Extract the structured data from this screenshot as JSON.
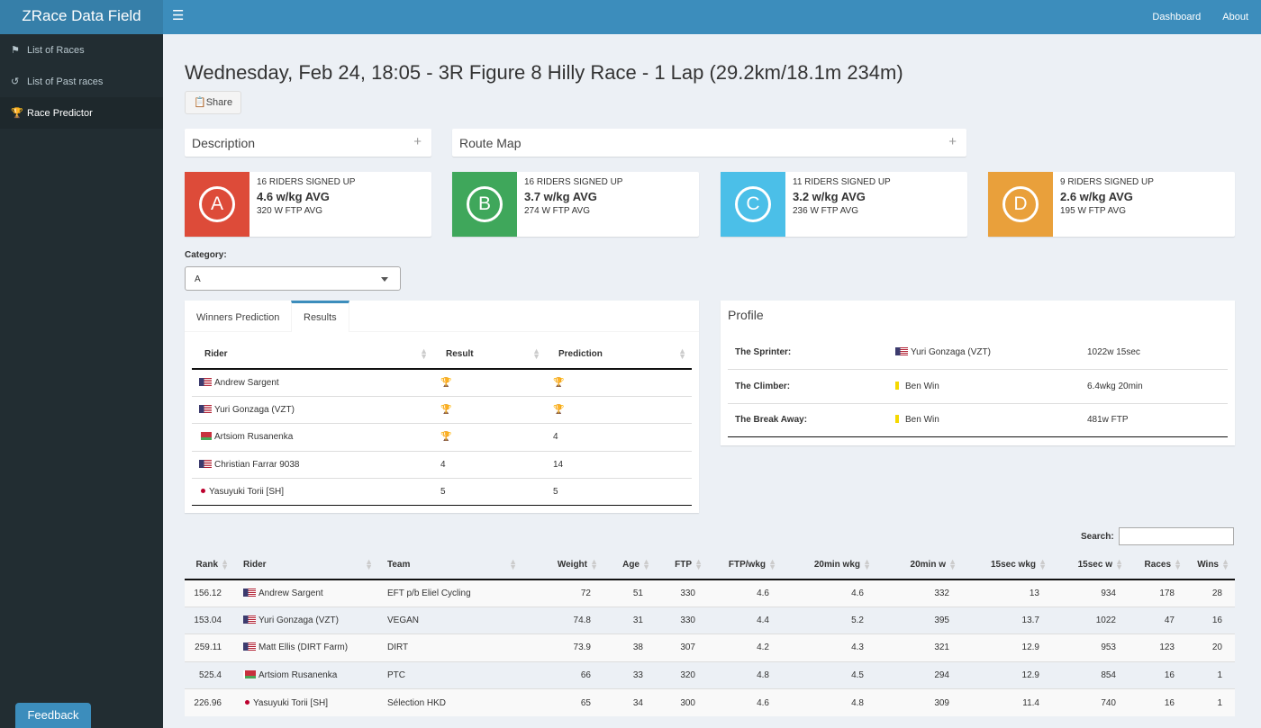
{
  "app": {
    "title": "ZRace Data Field"
  },
  "header": {
    "nav": [
      "Dashboard",
      "About"
    ]
  },
  "sidebar": {
    "items": [
      {
        "label": "List of Races",
        "icon": "flag-checkered-icon"
      },
      {
        "label": "List of Past races",
        "icon": "history-icon"
      },
      {
        "label": "Race Predictor",
        "icon": "trophy-icon",
        "active": true
      }
    ],
    "feedback_label": "Feedback"
  },
  "page": {
    "title": "Wednesday, Feb 24, 18:05 - 3R Figure 8 Hilly Race - 1 Lap (29.2km/18.1m 234m)",
    "share_label": "Share",
    "description_title": "Description",
    "route_map_title": "Route Map"
  },
  "categories": [
    {
      "letter": "A",
      "riders": "16 RIDERS SIGNED UP",
      "wkg": "4.6 w/kg AVG",
      "ftp": "320 W FTP AVG",
      "color": "#dd4b39"
    },
    {
      "letter": "B",
      "riders": "16 RIDERS SIGNED UP",
      "wkg": "3.7 w/kg AVG",
      "ftp": "274 W FTP AVG",
      "color": "#3fa75b"
    },
    {
      "letter": "C",
      "riders": "11 RIDERS SIGNED UP",
      "wkg": "3.2 w/kg AVG",
      "ftp": "236 W FTP AVG",
      "color": "#4bbfe8"
    },
    {
      "letter": "D",
      "riders": "9 RIDERS SIGNED UP",
      "wkg": "2.6 w/kg AVG",
      "ftp": "195 W FTP AVG",
      "color": "#e9a03b"
    }
  ],
  "category_select": {
    "label": "Category:",
    "value": "A"
  },
  "tabs": [
    "Winners Prediction",
    "Results"
  ],
  "results_table": {
    "headers": [
      "Rider",
      "Result",
      "Prediction"
    ],
    "rows": [
      {
        "flag": "us",
        "rider": "Andrew Sargent",
        "result": "",
        "result_trophy": "gold",
        "prediction": "",
        "prediction_trophy": "gold"
      },
      {
        "flag": "us",
        "rider": "Yuri Gonzaga (VZT)",
        "result": "",
        "result_trophy": "silver",
        "prediction": "",
        "prediction_trophy": "silver"
      },
      {
        "flag": "by",
        "rider": "Artsiom Rusanenka",
        "result": "",
        "result_trophy": "bronze",
        "prediction": "4",
        "prediction_trophy": ""
      },
      {
        "flag": "us",
        "rider": "Christian Farrar 9038",
        "result": "4",
        "result_trophy": "",
        "prediction": "14",
        "prediction_trophy": ""
      },
      {
        "flag": "jp",
        "rider": "Yasuyuki Torii [SH]",
        "result": "5",
        "result_trophy": "",
        "prediction": "5",
        "prediction_trophy": ""
      }
    ]
  },
  "profile": {
    "title": "Profile",
    "rows": [
      {
        "label": "The Sprinter:",
        "flag": "us",
        "name": "Yuri Gonzaga (VZT)",
        "value": "1022w 15sec"
      },
      {
        "label": "The Climber:",
        "flag": "yellow",
        "name": "Ben Win",
        "value": "6.4wkg 20min"
      },
      {
        "label": "The Break Away:",
        "flag": "yellow",
        "name": "Ben Win",
        "value": "481w FTP"
      }
    ]
  },
  "search": {
    "label": "Search:",
    "value": ""
  },
  "riders_table": {
    "headers": [
      "Rank",
      "Rider",
      "Team",
      "Weight",
      "Age",
      "FTP",
      "FTP/wkg",
      "20min wkg",
      "20min w",
      "15sec wkg",
      "15sec w",
      "Races",
      "Wins"
    ],
    "rows": [
      {
        "rank": "156.12",
        "flag": "us",
        "rider": "Andrew Sargent",
        "team": "EFT p/b Eliel Cycling",
        "weight": "72",
        "age": "51",
        "ftp": "330",
        "ftpwkg": "4.6",
        "w20wkg": "4.6",
        "w20": "332",
        "s15wkg": "13",
        "s15": "934",
        "races": "178",
        "wins": "28"
      },
      {
        "rank": "153.04",
        "flag": "us",
        "rider": "Yuri Gonzaga (VZT)",
        "team": "VEGAN",
        "weight": "74.8",
        "age": "31",
        "ftp": "330",
        "ftpwkg": "4.4",
        "w20wkg": "5.2",
        "w20": "395",
        "s15wkg": "13.7",
        "s15": "1022",
        "races": "47",
        "wins": "16"
      },
      {
        "rank": "259.11",
        "flag": "us",
        "rider": "Matt Ellis (DIRT Farm)",
        "team": "DIRT",
        "weight": "73.9",
        "age": "38",
        "ftp": "307",
        "ftpwkg": "4.2",
        "w20wkg": "4.3",
        "w20": "321",
        "s15wkg": "12.9",
        "s15": "953",
        "races": "123",
        "wins": "20"
      },
      {
        "rank": "525.4",
        "flag": "by",
        "rider": "Artsiom Rusanenka",
        "team": "PTC",
        "weight": "66",
        "age": "33",
        "ftp": "320",
        "ftpwkg": "4.8",
        "w20wkg": "4.5",
        "w20": "294",
        "s15wkg": "12.9",
        "s15": "854",
        "races": "16",
        "wins": "1"
      },
      {
        "rank": "226.96",
        "flag": "jp",
        "rider": "Yasuyuki Torii [SH]",
        "team": "Sélection HKD",
        "weight": "65",
        "age": "34",
        "ftp": "300",
        "ftpwkg": "4.6",
        "w20wkg": "4.8",
        "w20": "309",
        "s15wkg": "11.4",
        "s15": "740",
        "races": "16",
        "wins": "1"
      }
    ]
  }
}
